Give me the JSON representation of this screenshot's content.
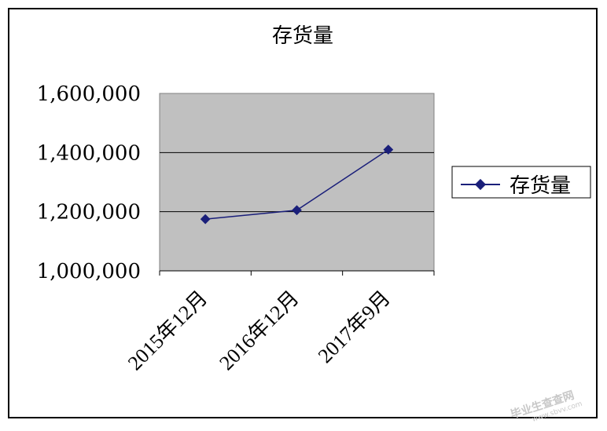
{
  "chart_data": {
    "type": "line",
    "title": "存货量",
    "categories": [
      "2015年12月",
      "2016年12月",
      "2017年9月"
    ],
    "series": [
      {
        "name": "存货量",
        "values": [
          1175000,
          1205000,
          1410000
        ],
        "color": "#1a1f7a"
      }
    ],
    "ylim": [
      1000000,
      1600000
    ],
    "yticks": [
      1000000,
      1200000,
      1400000,
      1600000
    ],
    "ytick_labels": [
      "1,000,000",
      "1,200,000",
      "1,400,000",
      "1,600,000"
    ],
    "plot_background": "#c0c0c0",
    "grid": true,
    "legend": "right",
    "xlabel": "",
    "ylabel": ""
  },
  "watermark": {
    "line1": "毕业生查查网",
    "line2": "www.sbvv.com"
  }
}
